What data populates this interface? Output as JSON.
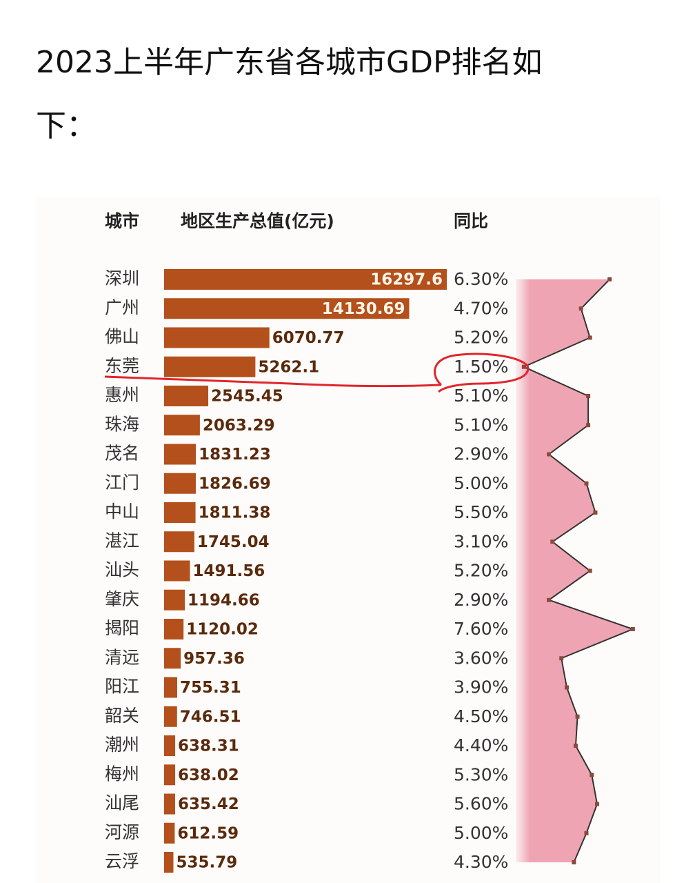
{
  "post_title_line1": "2023上半年广东省各城市GDP排名如",
  "post_title_line2": "下：",
  "chart_data": {
    "type": "bar",
    "category_header": "城市",
    "categories": [
      "深圳",
      "广州",
      "佛山",
      "东莞",
      "惠州",
      "珠海",
      "茂名",
      "江门",
      "中山",
      "湛江",
      "汕头",
      "肇庆",
      "揭阳",
      "清远",
      "阳江",
      "韶关",
      "潮州",
      "梅州",
      "汕尾",
      "河源",
      "云浮"
    ],
    "series": [
      {
        "name": "地区生产总值(亿元)",
        "color": "#b4501b",
        "values": [
          16297.6,
          14130.69,
          6070.77,
          5262.1,
          2545.45,
          2063.29,
          1831.23,
          1826.69,
          1811.38,
          1745.04,
          1491.56,
          1194.66,
          1120.02,
          957.36,
          755.31,
          746.51,
          638.31,
          638.02,
          635.42,
          612.59,
          535.79
        ]
      },
      {
        "name": "同比",
        "type": "line",
        "color": "#333333",
        "values": [
          6.3,
          4.7,
          5.2,
          1.5,
          5.1,
          5.1,
          2.9,
          5.0,
          5.5,
          3.1,
          5.2,
          2.9,
          7.6,
          3.6,
          3.9,
          4.5,
          4.4,
          5.3,
          5.6,
          5.0,
          4.3
        ],
        "value_labels": [
          "6.30%",
          "4.70%",
          "5.20%",
          "1.50%",
          "5.10%",
          "5.10%",
          "2.90%",
          "5.00%",
          "5.50%",
          "3.10%",
          "5.20%",
          "2.90%",
          "7.60%",
          "3.60%",
          "3.90%",
          "4.50%",
          "4.40%",
          "5.30%",
          "5.60%",
          "5.00%",
          "4.30%"
        ]
      }
    ]
  }
}
